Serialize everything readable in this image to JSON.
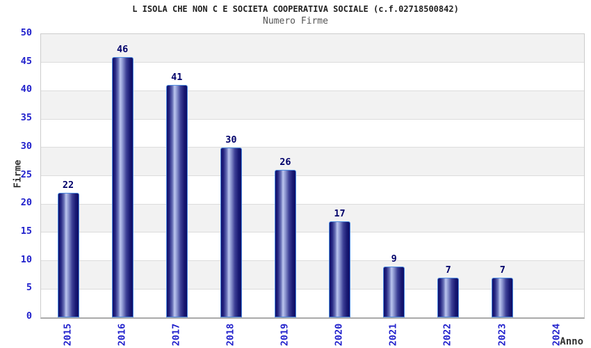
{
  "chart_data": {
    "type": "bar",
    "title": "L ISOLA CHE NON C E SOCIETA COOPERATIVA SOCIALE (c.f.02718500842)",
    "subtitle": "Numero Firme",
    "xlabel": "Anno",
    "ylabel": "Firme",
    "categories": [
      "2015",
      "2016",
      "2017",
      "2018",
      "2019",
      "2020",
      "2021",
      "2022",
      "2023",
      "2024"
    ],
    "values": [
      22,
      46,
      41,
      30,
      26,
      17,
      9,
      7,
      7,
      null
    ],
    "ylim": [
      0,
      50
    ],
    "ytick_step": 5,
    "grid": "horizontal-bands-alternating",
    "legend": "none"
  },
  "colors": {
    "tick_label_blue": "#2222cc",
    "value_label_navy": "#00006a",
    "bar_border_blue": "#4d8be0",
    "bar_dark": "#0f0f6c",
    "bar_highlight": "#bcc6ef",
    "band_gray": "#f2f2f2",
    "band_white": "#ffffff",
    "grid_line": "#dcdcdc",
    "plot_border": "#cccccc",
    "axis_line": "#aaaaaa",
    "title_color": "#222222",
    "subtitle_color": "#555555",
    "axis_title_color": "#333333"
  }
}
